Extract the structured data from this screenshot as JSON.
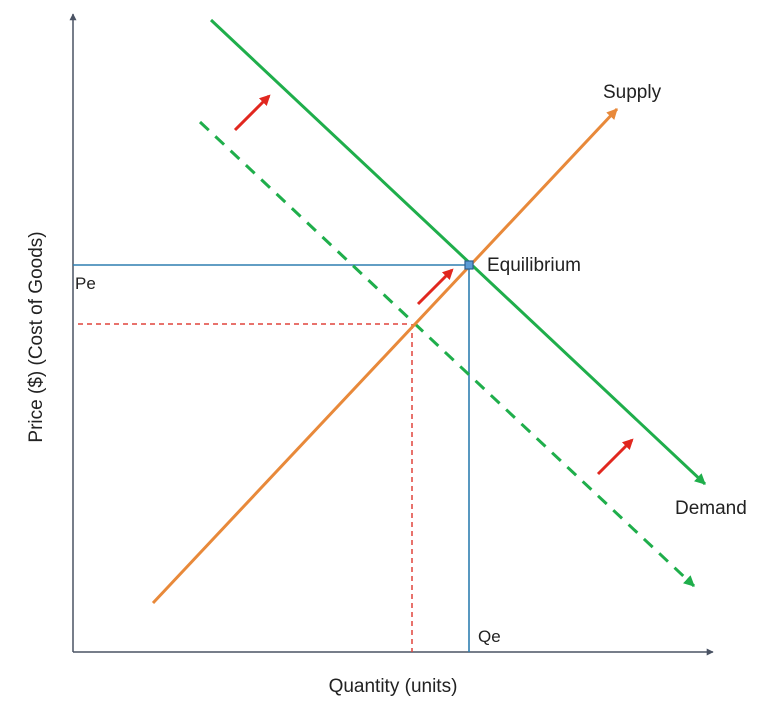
{
  "labels": {
    "supply": "Supply",
    "demand": "Demand",
    "equilibrium": "Equilibrium",
    "pe": "Pe",
    "qe": "Qe",
    "x_axis": "Quantity (units)",
    "y_axis": "Price ($) (Cost of Goods)"
  },
  "colors": {
    "axis": "#4a5364",
    "supply": "#e8893a",
    "demand": "#1fae4b",
    "equilibrium_guides": "#2e7fb0",
    "new_guides": "#e0443c",
    "shift_arrows": "#e1271f",
    "equilibrium_point": "#5b9bd5"
  }
}
